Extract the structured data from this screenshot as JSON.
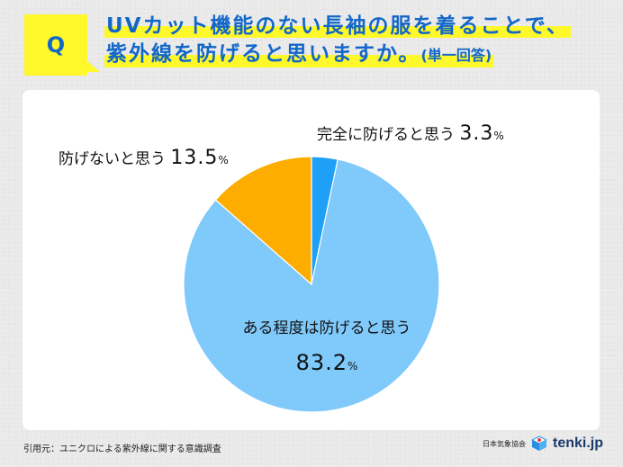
{
  "header": {
    "q_label": "Q",
    "question_line1": "UVカット機能のない長袖の服を着ることで、",
    "question_line2": "紫外線を防げると思いますか。",
    "question_note": "(単一回答)"
  },
  "labels": {
    "full": {
      "text": "完全に防げると思う",
      "value": "3.3",
      "unit": "%"
    },
    "no": {
      "text": "防げないと思う",
      "value": "13.5",
      "unit": "%"
    },
    "some": {
      "text": "ある程度は防げると思う",
      "value": "83.2",
      "unit": "%"
    }
  },
  "footer": {
    "source": "引用元：ユニクロによる紫外線に関する意識調査",
    "org": "日本気象協会",
    "brand": "tenki.jp",
    "logo_icon": "tenki-cube-icon"
  },
  "colors": {
    "title_text": "#1367c8",
    "highlight": "#fff82a",
    "slice_full": "#1ea0f7",
    "slice_some": "#80c9fb",
    "slice_no": "#fdac00"
  },
  "chart_data": {
    "type": "pie",
    "title": "UVカット機能のない長袖の服を着ることで、紫外線を防げると思いますか。(単一回答)",
    "categories": [
      "完全に防げると思う",
      "ある程度は防げると思う",
      "防げないと思う"
    ],
    "values": [
      3.3,
      83.2,
      13.5
    ],
    "unit": "%",
    "colors": [
      "#1ea0f7",
      "#80c9fb",
      "#fdac00"
    ],
    "start_angle": "12 o'clock",
    "direction": "clockwise",
    "legend": "none (direct labels)",
    "source": "ユニクロによる紫外線に関する意識調査"
  }
}
